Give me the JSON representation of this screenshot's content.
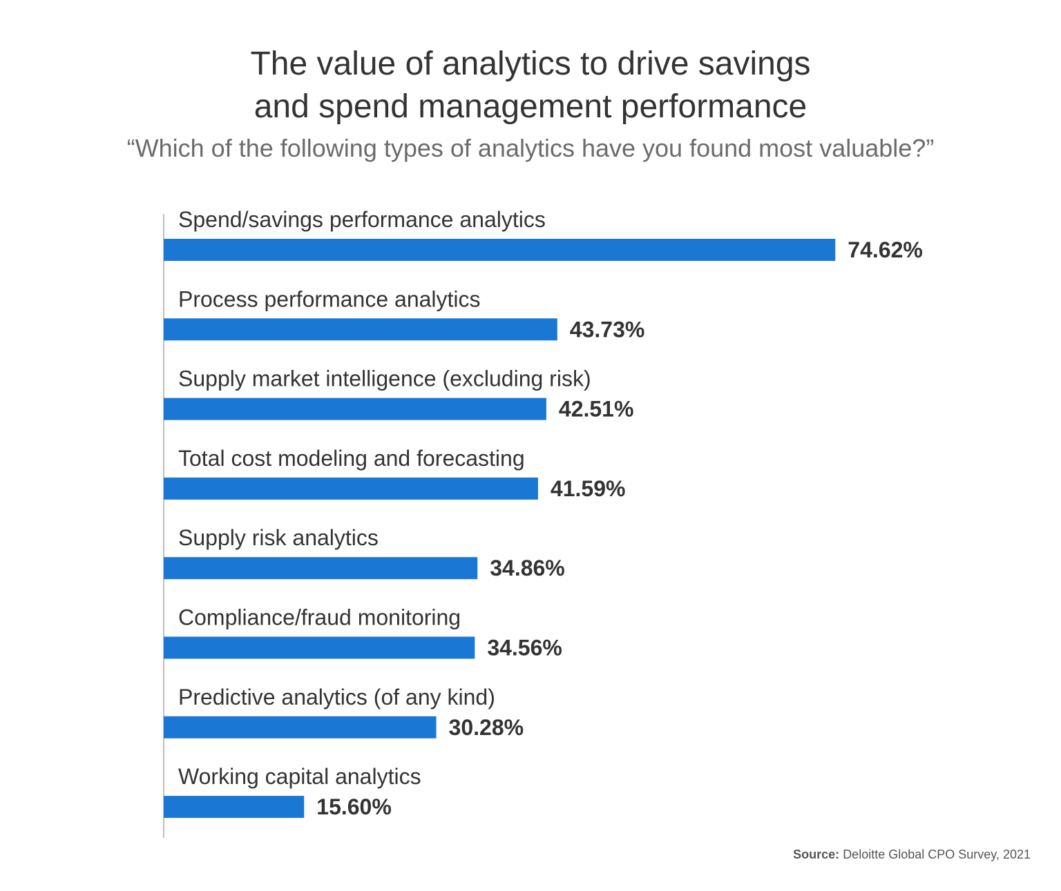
{
  "chart_data": {
    "type": "bar",
    "orientation": "horizontal",
    "title": [
      "The value of analytics to drive savings",
      "and spend management performance"
    ],
    "subtitle": "“Which of the following types of analytics have you found most valuable?”",
    "categories": [
      "Spend/savings performance analytics",
      "Process performance analytics",
      "Supply market intelligence (excluding risk)",
      "Total cost modeling and forecasting",
      "Supply risk analytics",
      "Compliance/fraud monitoring",
      "Predictive analytics (of any kind)",
      "Working capital analytics"
    ],
    "values": [
      74.62,
      43.73,
      42.51,
      41.59,
      34.86,
      34.56,
      30.28,
      15.6
    ],
    "value_labels": [
      "74.62%",
      "43.73%",
      "42.51%",
      "41.59%",
      "34.86%",
      "34.56%",
      "30.28%",
      "15.60%"
    ],
    "xlim": [
      0,
      100
    ],
    "xlabel": "",
    "ylabel": "",
    "grid": false,
    "legend": "none",
    "bar_color": "#1a78d4"
  },
  "source": {
    "label": "Source:",
    "text": "Deloitte Global CPO Survey, 2021"
  }
}
